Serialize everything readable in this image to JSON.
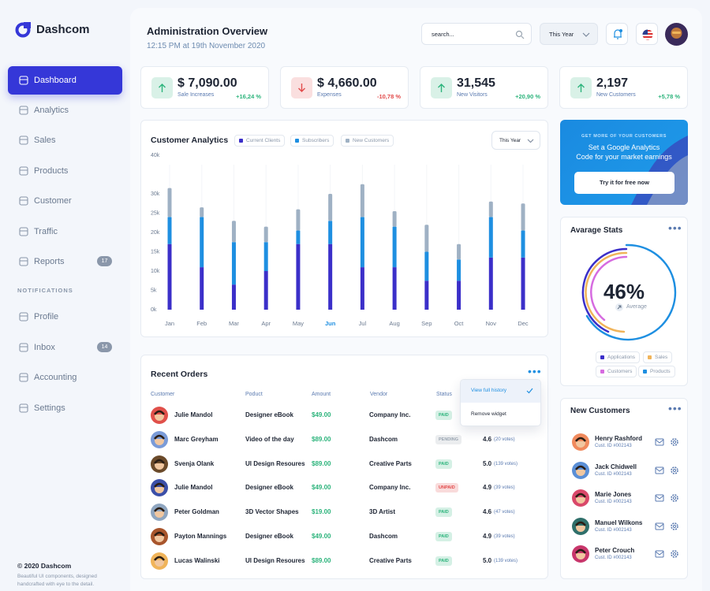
{
  "brand": "Dashcom",
  "nav": [
    {
      "label": "Dashboard",
      "active": true
    },
    {
      "label": "Analytics"
    },
    {
      "label": "Sales"
    },
    {
      "label": "Products"
    },
    {
      "label": "Customer"
    },
    {
      "label": "Traffic"
    },
    {
      "label": "Reports",
      "badge": 17
    }
  ],
  "notifications_heading": "NOTIFICATIONS",
  "nav2": [
    {
      "label": "Profile"
    },
    {
      "label": "Inbox",
      "badge": 14
    },
    {
      "label": "Accounting"
    },
    {
      "label": "Settings"
    }
  ],
  "footer": {
    "copyright": "© 2020 Dashcom",
    "note": "Beautiful UI components, designed handcrafted with eye to the detail."
  },
  "header": {
    "title": "Administration Overview",
    "subtitle": "12:15 PM at 19th November 2020",
    "search_placeholder": "search...",
    "period": "This Year"
  },
  "stats": [
    {
      "value": "$ 7,090.00",
      "label": "Sale Increases",
      "change": "+16,24 %",
      "trend": "up",
      "color": "#2db47c"
    },
    {
      "value": "$ 4,660.00",
      "label": "Expenses",
      "change": "-10,78 %",
      "trend": "down",
      "color": "#e24b4b"
    },
    {
      "value": "31,545",
      "label": "New Visitors",
      "change": "+20,90 %",
      "trend": "up",
      "color": "#2db47c"
    },
    {
      "value": "2,197",
      "label": "New Customers",
      "change": "+5,78 %",
      "trend": "up",
      "color": "#2db47c"
    }
  ],
  "chart_data": {
    "type": "bar",
    "stacked": true,
    "title": "Customer Analytics",
    "period": "This Year",
    "categories": [
      "Jan",
      "Feb",
      "Mar",
      "Apr",
      "May",
      "Jun",
      "Jul",
      "Aug",
      "Sep",
      "Oct",
      "Nov",
      "Dec"
    ],
    "highlight": "Jun",
    "series": [
      {
        "name": "Current Clients",
        "color": "#3b2fc9",
        "values": [
          17000,
          11000,
          6500,
          10000,
          17000,
          17000,
          11000,
          11000,
          7500,
          7500,
          13500,
          13500
        ]
      },
      {
        "name": "Subscribers",
        "color": "#1e8fe1",
        "values": [
          7000,
          13000,
          11000,
          7500,
          3500,
          6000,
          13000,
          10500,
          7500,
          5500,
          10500,
          7000
        ]
      },
      {
        "name": "New Customers",
        "color": "#9fb1c4",
        "values": [
          7500,
          2500,
          5500,
          4000,
          5500,
          7000,
          8500,
          4000,
          7000,
          4000,
          4000,
          7000
        ]
      }
    ],
    "ylim": [
      0,
      40000
    ],
    "yticks": [
      {
        "value": 0,
        "label": "0k"
      },
      {
        "value": 5000,
        "label": "5k"
      },
      {
        "value": 10000,
        "label": "10k"
      },
      {
        "value": 15000,
        "label": "15k"
      },
      {
        "value": 20000,
        "label": "20k"
      },
      {
        "value": 25000,
        "label": "25k"
      },
      {
        "value": 30000,
        "label": "30k"
      },
      {
        "value": 40000,
        "label": "40k"
      }
    ],
    "grid": false
  },
  "promo": {
    "kicker": "GET MORE OF YOUR CUSTOMERS",
    "line1": "Set a Google Analytics",
    "line2": "Code for your market earnings",
    "button": "Try it for free now"
  },
  "avg_stats": {
    "title": "Avarage Stats",
    "value": "46%",
    "caption": "Average",
    "legend": [
      {
        "name": "Applications",
        "color": "#3b2fc9"
      },
      {
        "name": "Sales",
        "color": "#f0b45a"
      },
      {
        "name": "Customers",
        "color": "#d66be0"
      },
      {
        "name": "Products",
        "color": "#1e8fe1"
      }
    ]
  },
  "orders": {
    "title": "Recent Orders",
    "columns": [
      "Customer",
      "Poduct",
      "Amount",
      "Vendor",
      "Status"
    ],
    "menu": [
      "View full history",
      "Remove widget"
    ],
    "rows": [
      {
        "name": "Julie Mandol",
        "product": "Designer eBook",
        "amount": "$49.00",
        "vendor": "Company Inc.",
        "status": "PAID",
        "status_color": "#2db47c",
        "avatar": "#e0504a"
      },
      {
        "name": "Marc Greyham",
        "product": "Video of the day",
        "amount": "$89.00",
        "vendor": "Dashcom",
        "status": "PENDING",
        "status_color": "#9aa5b1",
        "rating": "4.6",
        "votes": "(20 votes)",
        "avatar": "#7a9bd8"
      },
      {
        "name": "Svenja Olank",
        "product": "UI Design Resoures",
        "amount": "$89.00",
        "vendor": "Creative Parts",
        "status": "PAID",
        "status_color": "#2db47c",
        "rating": "5.0",
        "votes": "(139 votes)",
        "avatar": "#6b4a2a"
      },
      {
        "name": "Julie Mandol",
        "product": "Designer eBook",
        "amount": "$49.00",
        "vendor": "Company Inc.",
        "status": "UNPAID",
        "status_color": "#e24b4b",
        "rating": "4.9",
        "votes": "(39 votes)",
        "avatar": "#3b4fa8"
      },
      {
        "name": "Peter Goldman",
        "product": "3D Vector Shapes",
        "amount": "$19.00",
        "vendor": "3D Artist",
        "status": "PAID",
        "status_color": "#2db47c",
        "rating": "4.6",
        "votes": "(47 votes)",
        "avatar": "#8fa6c0"
      },
      {
        "name": "Payton Mannings",
        "product": "Designer eBook",
        "amount": "$49.00",
        "vendor": "Dashcom",
        "status": "PAID",
        "status_color": "#2db47c",
        "rating": "4.9",
        "votes": "(39 votes)",
        "avatar": "#a8552c"
      },
      {
        "name": "Lucas Walinski",
        "product": "UI Design Resoures",
        "amount": "$89.00",
        "vendor": "Creative Parts",
        "status": "PAID",
        "status_color": "#2db47c",
        "rating": "5.0",
        "votes": "(139 votes)",
        "avatar": "#f0b45a"
      }
    ]
  },
  "new_customers": {
    "title": "New Customers",
    "rows": [
      {
        "name": "Henry Rashford",
        "id": "Cust. ID #002143",
        "avatar": "#f08a5d"
      },
      {
        "name": "Jack Chidwell",
        "id": "Cust. ID #002143",
        "avatar": "#5b8fd6"
      },
      {
        "name": "Marie Jones",
        "id": "Cust. ID #002143",
        "avatar": "#d9486a"
      },
      {
        "name": "Manuel Wilkons",
        "id": "Cust. ID #002143",
        "avatar": "#2f6f6a"
      },
      {
        "name": "Peter Crouch",
        "id": "Cust. ID #002143",
        "avatar": "#c8366b"
      }
    ]
  }
}
